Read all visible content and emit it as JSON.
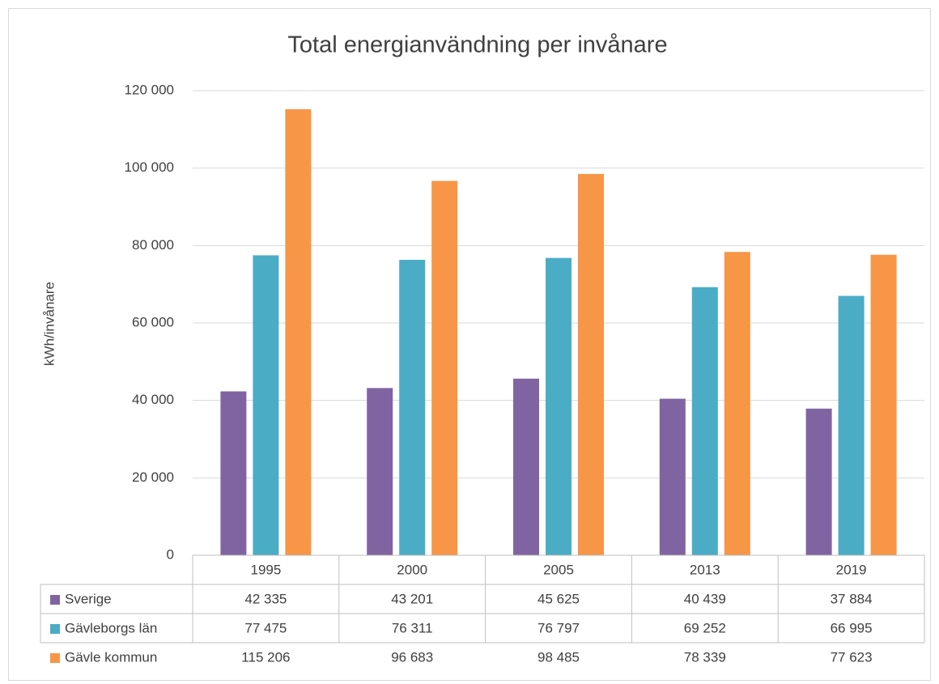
{
  "chart_data": {
    "type": "bar",
    "title": "Total energianvändning per invånare",
    "y_label": "kWh/invånare",
    "categories": [
      "1995",
      "2000",
      "2005",
      "2013",
      "2019"
    ],
    "series": [
      {
        "name": "Sverige",
        "color": "#8064a2",
        "values": [
          42335,
          43201,
          45625,
          40439,
          37884
        ],
        "value_labels": [
          "42 335",
          "43 201",
          "45 625",
          "40 439",
          "37 884"
        ]
      },
      {
        "name": "Gävleborgs län",
        "color": "#4bacc6",
        "values": [
          77475,
          76311,
          76797,
          69252,
          66995
        ],
        "value_labels": [
          "77 475",
          "76 311",
          "76 797",
          "69 252",
          "66 995"
        ]
      },
      {
        "name": "Gävle kommun",
        "color": "#f79646",
        "values": [
          115206,
          96683,
          98485,
          78339,
          77623
        ],
        "value_labels": [
          "115 206",
          "96 683",
          "98 485",
          "78 339",
          "77 623"
        ]
      }
    ],
    "ylim": [
      0,
      120000
    ],
    "yticks": [
      0,
      {
        "value": 20000,
        "label": "20 000"
      },
      {
        "value": 40000,
        "label": "40 000"
      },
      {
        "value": 60000,
        "label": "60 000"
      },
      {
        "value": 80000,
        "label": "80 000"
      },
      {
        "value": 100000,
        "label": "100 000"
      },
      {
        "value": 120000,
        "label": "120 000"
      }
    ],
    "grid": true
  }
}
